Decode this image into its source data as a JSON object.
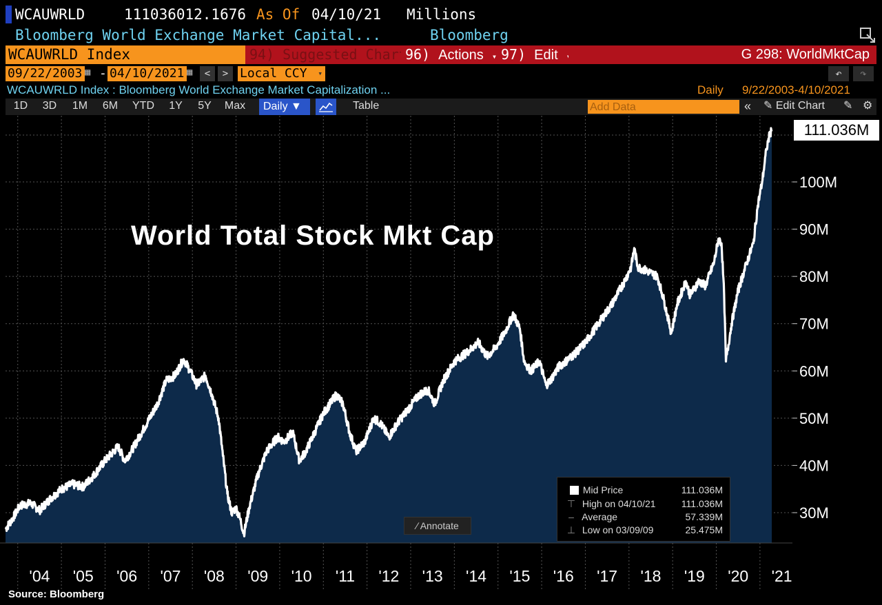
{
  "header": {
    "ticker": "WCAUWRLD",
    "value": "111036012.1676",
    "as_of_label": "As Of",
    "as_of_date": "04/10/21",
    "units": "Millions",
    "description": "Bloomberg World Exchange Market Capital...",
    "source": "Bloomberg"
  },
  "toolbar": {
    "security": "WCAUWRLD Index",
    "suggested_num": "94)",
    "suggested_label": "Suggested Charts",
    "actions_num": "96)",
    "actions_label": "Actions",
    "edit_num": "97)",
    "edit_label": "Edit",
    "page_label": "G 298: WorldMktCap"
  },
  "dates": {
    "start": "09/22/2003",
    "separator": "-",
    "end": "04/10/2021",
    "currency": "Local CCY"
  },
  "info": {
    "title": "WCAUWRLD Index : Bloomberg World Exchange Market Capitalization ...",
    "frequency": "Daily",
    "range": "9/22/2003-4/10/2021"
  },
  "periods": [
    "1D",
    "3D",
    "1M",
    "6M",
    "YTD",
    "1Y",
    "5Y",
    "Max"
  ],
  "period_select": "Daily",
  "table_label": "Table",
  "add_data_placeholder": "Add Data",
  "edit_chart_label": "Edit Chart",
  "annotate_label": "Annotate",
  "footer_source": "Source: Bloomberg",
  "colors": {
    "fill": "#0d2a4a",
    "line": "#ffffff",
    "accent_orange": "#f7941d",
    "accent_red": "#b1121c",
    "cyan": "#6fd2f0"
  },
  "chart_data": {
    "type": "area",
    "title": "World Total Stock Mkt Cap",
    "x_ticks": [
      "'04",
      "'05",
      "'06",
      "'07",
      "'08",
      "'09",
      "'10",
      "'11",
      "'12",
      "'13",
      "'14",
      "'15",
      "'16",
      "'17",
      "'18",
      "'19",
      "'20",
      "'21"
    ],
    "y_ticks": [
      "30M",
      "40M",
      "50M",
      "60M",
      "70M",
      "80M",
      "90M",
      "100M"
    ],
    "ylim": [
      22,
      114
    ],
    "xlim": [
      2003.72,
      2021.27
    ],
    "last_value_label": "111.036M",
    "series": [
      {
        "values": [
          [
            2003.72,
            26.5
          ],
          [
            2003.9,
            29
          ],
          [
            2004.05,
            31.5
          ],
          [
            2004.3,
            32
          ],
          [
            2004.5,
            30.5
          ],
          [
            2004.75,
            33
          ],
          [
            2005.0,
            35
          ],
          [
            2005.25,
            36
          ],
          [
            2005.5,
            35.5
          ],
          [
            2005.75,
            38
          ],
          [
            2006.0,
            41
          ],
          [
            2006.3,
            44
          ],
          [
            2006.45,
            41
          ],
          [
            2006.6,
            43
          ],
          [
            2006.9,
            48
          ],
          [
            2007.2,
            53
          ],
          [
            2007.4,
            58
          ],
          [
            2007.6,
            59
          ],
          [
            2007.8,
            62.5
          ],
          [
            2007.95,
            60
          ],
          [
            2008.1,
            57
          ],
          [
            2008.3,
            59
          ],
          [
            2008.45,
            55
          ],
          [
            2008.6,
            50
          ],
          [
            2008.7,
            42
          ],
          [
            2008.8,
            34
          ],
          [
            2008.9,
            30
          ],
          [
            2009.0,
            31
          ],
          [
            2009.1,
            28.5
          ],
          [
            2009.18,
            25.5
          ],
          [
            2009.3,
            31
          ],
          [
            2009.5,
            38
          ],
          [
            2009.7,
            43
          ],
          [
            2009.95,
            46
          ],
          [
            2010.1,
            45
          ],
          [
            2010.3,
            47
          ],
          [
            2010.45,
            41
          ],
          [
            2010.6,
            43
          ],
          [
            2010.8,
            47
          ],
          [
            2011.0,
            51
          ],
          [
            2011.3,
            55
          ],
          [
            2011.45,
            53
          ],
          [
            2011.6,
            47
          ],
          [
            2011.75,
            43
          ],
          [
            2011.95,
            45
          ],
          [
            2012.15,
            50
          ],
          [
            2012.3,
            49
          ],
          [
            2012.5,
            46
          ],
          [
            2012.7,
            49
          ],
          [
            2012.95,
            52
          ],
          [
            2013.2,
            55
          ],
          [
            2013.4,
            56
          ],
          [
            2013.55,
            53
          ],
          [
            2013.75,
            58
          ],
          [
            2014.0,
            62
          ],
          [
            2014.3,
            64
          ],
          [
            2014.55,
            66
          ],
          [
            2014.75,
            63
          ],
          [
            2014.95,
            65
          ],
          [
            2015.15,
            68
          ],
          [
            2015.35,
            72
          ],
          [
            2015.5,
            69
          ],
          [
            2015.6,
            62
          ],
          [
            2015.75,
            60
          ],
          [
            2015.95,
            62
          ],
          [
            2016.1,
            57
          ],
          [
            2016.2,
            58
          ],
          [
            2016.4,
            61
          ],
          [
            2016.55,
            62
          ],
          [
            2016.8,
            64
          ],
          [
            2017.0,
            66
          ],
          [
            2017.3,
            70
          ],
          [
            2017.6,
            74
          ],
          [
            2017.9,
            79
          ],
          [
            2018.05,
            82
          ],
          [
            2018.12,
            86
          ],
          [
            2018.2,
            82
          ],
          [
            2018.45,
            81
          ],
          [
            2018.65,
            80
          ],
          [
            2018.8,
            75
          ],
          [
            2018.97,
            68
          ],
          [
            2019.1,
            74
          ],
          [
            2019.3,
            79
          ],
          [
            2019.4,
            76
          ],
          [
            2019.6,
            79
          ],
          [
            2019.75,
            78
          ],
          [
            2019.95,
            83
          ],
          [
            2020.05,
            88
          ],
          [
            2020.12,
            87
          ],
          [
            2020.18,
            76
          ],
          [
            2020.22,
            62
          ],
          [
            2020.35,
            70
          ],
          [
            2020.5,
            77
          ],
          [
            2020.7,
            83
          ],
          [
            2020.85,
            87
          ],
          [
            2020.95,
            95
          ],
          [
            2021.05,
            100
          ],
          [
            2021.15,
            107
          ],
          [
            2021.22,
            110
          ],
          [
            2021.27,
            111.036
          ]
        ]
      }
    ],
    "legend": {
      "mid_price_label": "Mid Price",
      "mid_price_value": "111.036M",
      "high_label": "High on 04/10/21",
      "high_value": "111.036M",
      "average_label": "Average",
      "average_value": "57.339M",
      "low_label": "Low on 03/09/09",
      "low_value": "25.475M"
    }
  }
}
